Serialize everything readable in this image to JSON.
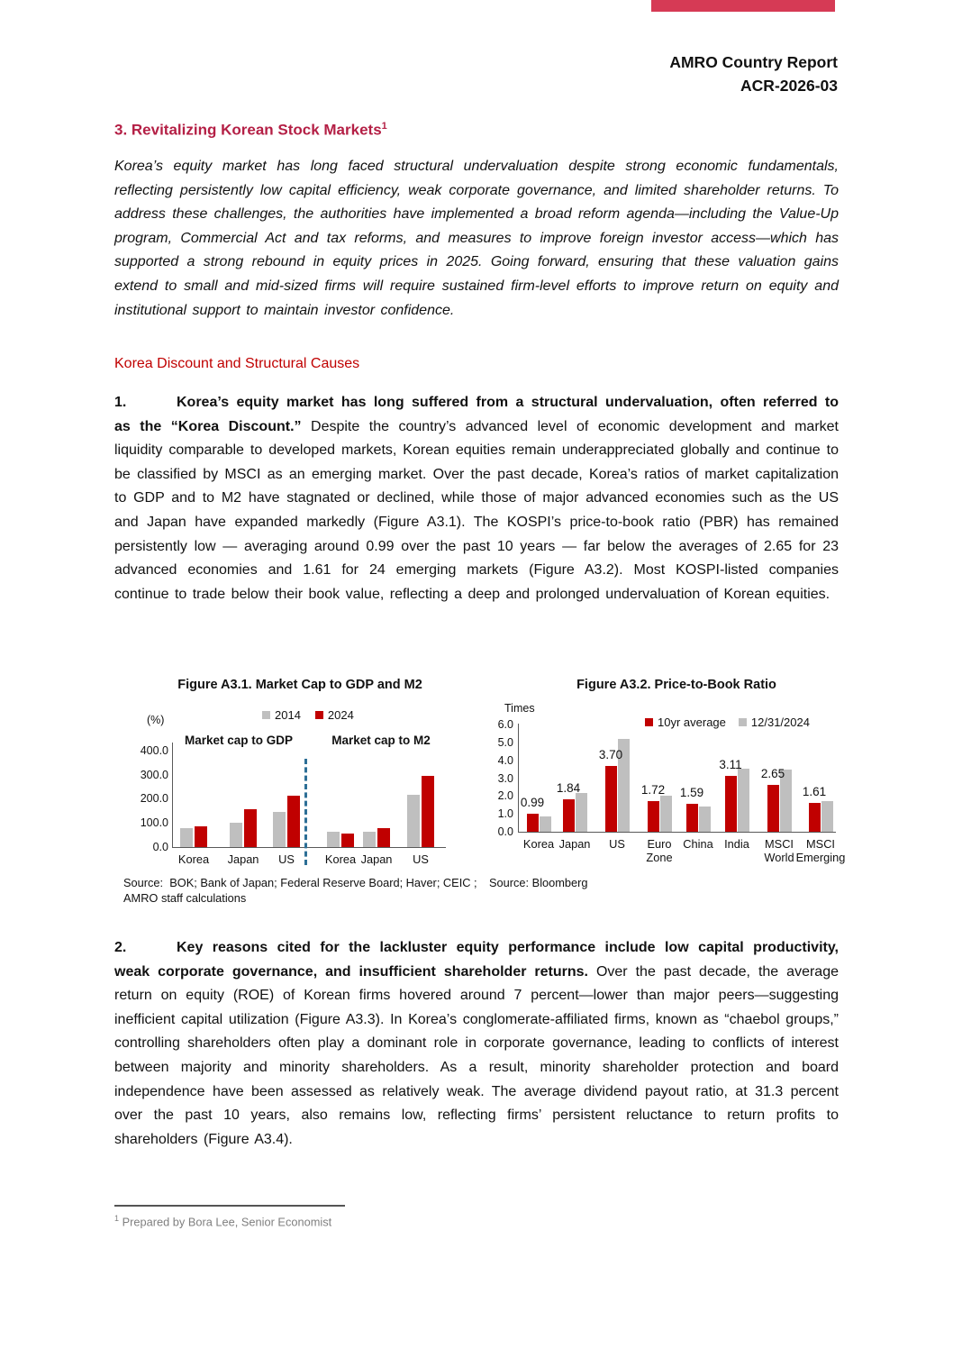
{
  "header": {
    "accent_color": "#d63a55",
    "report_title": "AMRO Country Report",
    "report_number": "ACR-2026-03"
  },
  "title": {
    "text": "3. Revitalizing Korean Stock Markets",
    "footnote_marker": "1",
    "color": "#b41f45"
  },
  "abstract": "Korea’s equity market has long faced structural undervaluation despite strong economic fundamentals, reflecting persistently low capital efficiency, weak corporate governance, and limited shareholder returns. To address these challenges, the authorities have implemented a broad reform agenda—including the Value-Up program, Commercial Act and tax reforms, and measures to improve foreign investor access—which has supported a strong rebound in equity prices in 2025. Going forward, ensuring that these valuation gains extend to small and mid-sized firms will require sustained firm-level efforts to improve return on equity and institutional support to maintain investor confidence.",
  "section_heading": "Korea Discount and Structural Causes",
  "section_heading_color": "#c00000",
  "paragraph1": {
    "number": "1.",
    "bold": "Korea’s equity market has long suffered from a structural undervaluation, often referred to as the “Korea Discount.”",
    "text": " Despite the country’s advanced level of economic development and market liquidity comparable to developed markets, Korean equities remain underappreciated globally and continue to be classified by MSCI as an emerging market. Over the past decade, Korea’s ratios of market capitalization to GDP and to M2 have stagnated or declined, while those of major advanced economies such as the US and Japan have expanded markedly (Figure A3.1). The KOSPI’s price-to-book ratio (PBR) has remained persistently low — averaging around 0.99 over the past 10 years — far below the averages of 2.65 for 23 advanced economies and 1.61 for 24 emerging markets (Figure A3.2). Most KOSPI-listed companies continue to trade below their book value, reflecting a deep and prolonged undervaluation of Korean equities."
  },
  "paragraph2": {
    "number": "2.",
    "bold": "Key reasons cited for the lackluster equity performance include low capital productivity, weak corporate governance, and insufficient shareholder returns.",
    "text": " Over the past decade, the average return on equity (ROE) of Korean firms hovered around 7 percent—lower than major peers—suggesting inefficient capital utilization (Figure A3.3). In Korea’s conglomerate-affiliated firms, known as “chaebol groups,” controlling shareholders often play a dominant role in corporate governance, leading to conflicts of interest between majority and minority shareholders. As a result, minority shareholder protection and board independence have been assessed as relatively weak. The average dividend payout ratio, at 31.3 percent over the past 10 years, also remains low, reflecting firms’ persistent reluctance to return profits to shareholders (Figure A3.4)."
  },
  "chart_data": [
    {
      "type": "bar",
      "title": "Figure A3.1. Market Cap to GDP and M2",
      "unit_label": "(%)",
      "ylim": [
        0,
        400
      ],
      "yticks": [
        "400.0",
        "300.0",
        "200.0",
        "100.0",
        "0.0"
      ],
      "legend": [
        {
          "name": "2014",
          "color": "#bfbfbf"
        },
        {
          "name": "2024",
          "color": "#c00000"
        }
      ],
      "divider_color": "#2d6f96",
      "panels": [
        {
          "label": "Market cap to GDP",
          "categories": [
            "Korea",
            "Japan",
            "US"
          ],
          "series": [
            {
              "name": "2014",
              "values": [
                80,
                100,
                145
              ]
            },
            {
              "name": "2024",
              "values": [
                85,
                158,
                213
              ]
            }
          ]
        },
        {
          "label": "Market cap to M2",
          "categories": [
            "Korea",
            "Japan",
            "US"
          ],
          "series": [
            {
              "name": "2014",
              "values": [
                65,
                65,
                215
              ]
            },
            {
              "name": "2024",
              "values": [
                55,
                78,
                293
              ]
            }
          ]
        }
      ],
      "source": "Source:  BOK; Bank of Japan; Federal Reserve Board; Haver; CEIC ;\nAMRO staff calculations"
    },
    {
      "type": "bar",
      "title": "Figure A3.2. Price-to-Book Ratio",
      "unit_label": "Times",
      "ylim": [
        0,
        6
      ],
      "yticks": [
        "6.0",
        "5.0",
        "4.0",
        "3.0",
        "2.0",
        "1.0",
        "0.0"
      ],
      "legend": [
        {
          "name": "10yr average",
          "color": "#c00000"
        },
        {
          "name": "12/31/2024",
          "color": "#bfbfbf"
        }
      ],
      "categories": [
        "Korea",
        "Japan",
        "US",
        "Euro\nZone",
        "China",
        "India",
        "MSCI\nWorld",
        "MSCI\nEmerging"
      ],
      "series": [
        {
          "name": "10yr average",
          "values": [
            0.99,
            1.84,
            3.7,
            1.72,
            1.59,
            3.11,
            2.65,
            1.61
          ]
        },
        {
          "name": "12/31/2024",
          "values": [
            0.85,
            2.15,
            5.2,
            2.0,
            1.4,
            3.55,
            3.5,
            1.7
          ]
        }
      ],
      "data_labels": [
        "0.99",
        "1.84",
        "3.70",
        "1.72",
        "1.59",
        "3.11",
        "2.65",
        "1.61"
      ],
      "source": "Source: Bloomberg"
    }
  ],
  "footnote": {
    "marker": "1",
    "text": " Prepared by Bora Lee, Senior Economist"
  }
}
